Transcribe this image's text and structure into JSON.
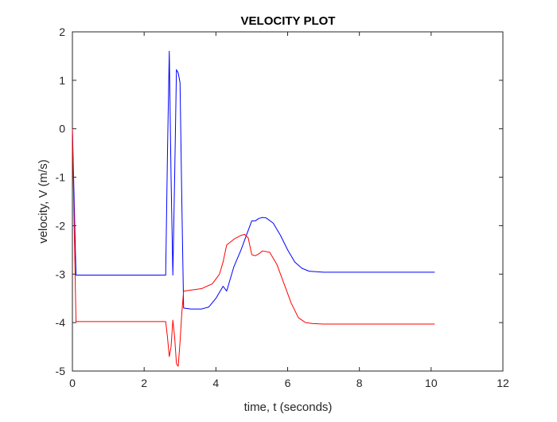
{
  "chart_data": {
    "type": "line",
    "title": "VELOCITY PLOT",
    "xlabel": "time, t (seconds)",
    "ylabel": "velocity, V (m/s)",
    "xlim": [
      0,
      12
    ],
    "ylim": [
      -5,
      2
    ],
    "xticks": [
      0,
      2,
      4,
      6,
      8,
      10,
      12
    ],
    "yticks": [
      -5,
      -4,
      -3,
      -2,
      -1,
      0,
      1,
      2
    ],
    "grid": false,
    "legend": "none",
    "series": [
      {
        "color": "#0000ff",
        "x": [
          0.0,
          0.05,
          0.1,
          0.2,
          1.0,
          2.0,
          2.6,
          2.65,
          2.7,
          2.75,
          2.8,
          2.85,
          2.9,
          2.95,
          3.0,
          3.05,
          3.1,
          3.3,
          3.6,
          3.8,
          4.0,
          4.2,
          4.3,
          4.4,
          4.5,
          4.7,
          4.85,
          4.95,
          5.0,
          5.1,
          5.2,
          5.3,
          5.4,
          5.6,
          5.8,
          6.0,
          6.2,
          6.4,
          6.6,
          6.8,
          7.0,
          7.5,
          8.0,
          9.0,
          10.1
        ],
        "y": [
          0.0,
          -1.5,
          -3.02,
          -3.02,
          -3.02,
          -3.02,
          -3.02,
          -0.5,
          1.6,
          -1.0,
          -3.02,
          -1.0,
          1.22,
          1.15,
          0.95,
          -1.5,
          -3.7,
          -3.72,
          -3.72,
          -3.68,
          -3.5,
          -3.25,
          -3.35,
          -3.1,
          -2.85,
          -2.5,
          -2.2,
          -2.0,
          -1.9,
          -1.9,
          -1.85,
          -1.83,
          -1.84,
          -1.95,
          -2.2,
          -2.5,
          -2.75,
          -2.88,
          -2.94,
          -2.95,
          -2.96,
          -2.96,
          -2.96,
          -2.96,
          -2.96
        ]
      },
      {
        "color": "#ff0000",
        "x": [
          0.0,
          0.05,
          0.1,
          0.2,
          1.0,
          2.0,
          2.6,
          2.65,
          2.7,
          2.75,
          2.8,
          2.85,
          2.9,
          2.95,
          3.0,
          3.05,
          3.1,
          3.3,
          3.6,
          3.9,
          4.1,
          4.2,
          4.3,
          4.5,
          4.7,
          4.8,
          4.9,
          5.0,
          5.1,
          5.2,
          5.3,
          5.5,
          5.7,
          5.9,
          6.1,
          6.3,
          6.5,
          6.7,
          7.0,
          7.5,
          8.0,
          9.0,
          10.1
        ],
        "y": [
          0.0,
          -2.0,
          -3.98,
          -3.98,
          -3.98,
          -3.98,
          -3.98,
          -4.3,
          -4.7,
          -4.5,
          -3.95,
          -4.3,
          -4.85,
          -4.9,
          -4.4,
          -3.8,
          -3.35,
          -3.33,
          -3.3,
          -3.2,
          -3.0,
          -2.75,
          -2.4,
          -2.28,
          -2.2,
          -2.18,
          -2.25,
          -2.6,
          -2.62,
          -2.58,
          -2.52,
          -2.55,
          -2.8,
          -3.2,
          -3.6,
          -3.9,
          -4.0,
          -4.02,
          -4.03,
          -4.03,
          -4.03,
          -4.03,
          -4.03
        ]
      }
    ]
  }
}
